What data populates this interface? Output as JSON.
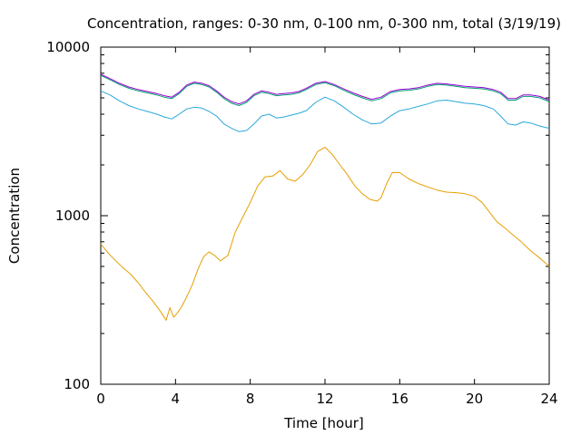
{
  "chart_data": {
    "type": "line",
    "title": "Concentration, ranges: 0-30 nm, 0-100 nm, 0-300 nm, total (3/19/19)",
    "xlabel": "Time [hour]",
    "ylabel": "Concentration",
    "xlim": [
      0,
      24
    ],
    "ylim": [
      100,
      10000
    ],
    "yscale": "log",
    "grid": false,
    "legend": "none",
    "x_ticks": [
      0,
      4,
      8,
      12,
      16,
      20,
      24
    ],
    "y_ticks": [
      100,
      1000,
      10000
    ],
    "series": [
      {
        "color": "#e69f00",
        "segments": [
          [
            [
              0,
              680
            ],
            [
              0.4,
              600
            ],
            [
              0.8,
              540
            ],
            [
              1.2,
              490
            ],
            [
              1.6,
              450
            ],
            [
              2.0,
              400
            ],
            [
              2.4,
              350
            ],
            [
              2.8,
              310
            ],
            [
              3.2,
              270
            ],
            [
              3.5,
              240
            ],
            [
              3.7,
              285
            ],
            [
              3.9,
              250
            ],
            [
              4.1,
              265
            ],
            [
              4.3,
              285
            ],
            [
              4.6,
              330
            ],
            [
              4.9,
              390
            ],
            [
              5.2,
              480
            ],
            [
              5.5,
              570
            ],
            [
              5.8,
              610
            ],
            [
              6.1,
              580
            ],
            [
              6.4,
              540
            ],
            [
              6.8,
              580
            ],
            [
              7.2,
              800
            ],
            [
              7.6,
              980
            ],
            [
              8.0,
              1200
            ],
            [
              8.4,
              1500
            ],
            [
              8.8,
              1700
            ],
            [
              9.2,
              1720
            ],
            [
              9.6,
              1850
            ],
            [
              10.0,
              1650
            ],
            [
              10.4,
              1600
            ],
            [
              10.8,
              1750
            ],
            [
              11.2,
              2000
            ],
            [
              11.6,
              2400
            ],
            [
              12.0,
              2550
            ],
            [
              12.4,
              2300
            ],
            [
              12.8,
              2000
            ],
            [
              13.2,
              1750
            ],
            [
              13.6,
              1500
            ],
            [
              14.0,
              1350
            ],
            [
              14.4,
              1250
            ],
            [
              14.8,
              1220
            ],
            [
              15.0,
              1280
            ],
            [
              15.3,
              1550
            ],
            [
              15.6,
              1800
            ],
            [
              16.0,
              1800
            ],
            [
              16.5,
              1650
            ],
            [
              17.0,
              1550
            ],
            [
              17.5,
              1480
            ],
            [
              18.0,
              1420
            ],
            [
              18.5,
              1380
            ],
            [
              19.0,
              1370
            ],
            [
              19.5,
              1350
            ],
            [
              20.0,
              1300
            ],
            [
              20.4,
              1200
            ],
            [
              20.8,
              1050
            ],
            [
              21.2,
              920
            ],
            [
              21.6,
              850
            ],
            [
              22.0,
              780
            ],
            [
              22.5,
              700
            ],
            [
              23.0,
              620
            ],
            [
              23.5,
              560
            ],
            [
              24.0,
              500
            ]
          ]
        ]
      },
      {
        "color": "#2aa8d8",
        "segments": [
          [
            [
              0,
              5500
            ],
            [
              0.5,
              5200
            ],
            [
              1.0,
              4800
            ],
            [
              1.5,
              4500
            ],
            [
              2.0,
              4300
            ],
            [
              2.5,
              4150
            ],
            [
              3.0,
              4000
            ],
            [
              3.4,
              3850
            ],
            [
              3.8,
              3750
            ],
            [
              4.2,
              4000
            ],
            [
              4.6,
              4300
            ],
            [
              5.0,
              4400
            ],
            [
              5.4,
              4350
            ],
            [
              5.8,
              4150
            ],
            [
              6.2,
              3900
            ],
            [
              6.6,
              3500
            ],
            [
              7.0,
              3300
            ],
            [
              7.4,
              3150
            ],
            [
              7.8,
              3200
            ],
            [
              8.2,
              3500
            ],
            [
              8.6,
              3900
            ],
            [
              9.0,
              4000
            ],
            [
              9.4,
              3800
            ],
            [
              9.8,
              3850
            ],
            [
              10.2,
              3950
            ],
            [
              10.6,
              4050
            ],
            [
              11.0,
              4200
            ],
            [
              11.5,
              4700
            ],
            [
              12.0,
              5050
            ],
            [
              12.5,
              4800
            ],
            [
              13.0,
              4400
            ],
            [
              13.5,
              4000
            ],
            [
              14.0,
              3700
            ],
            [
              14.5,
              3500
            ],
            [
              15.0,
              3550
            ],
            [
              15.5,
              3900
            ],
            [
              16.0,
              4200
            ],
            [
              16.5,
              4300
            ],
            [
              17.0,
              4450
            ],
            [
              17.5,
              4600
            ],
            [
              18.0,
              4800
            ],
            [
              18.5,
              4850
            ],
            [
              19.0,
              4750
            ],
            [
              19.5,
              4650
            ],
            [
              20.0,
              4600
            ],
            [
              20.5,
              4500
            ],
            [
              21.0,
              4300
            ],
            [
              21.4,
              3900
            ],
            [
              21.8,
              3500
            ],
            [
              22.2,
              3450
            ],
            [
              22.6,
              3600
            ],
            [
              23.0,
              3550
            ],
            [
              23.5,
              3400
            ],
            [
              24.0,
              3300
            ]
          ]
        ]
      },
      {
        "color": "#009e73",
        "segments": [
          [
            [
              0,
              6800
            ],
            [
              0.5,
              6400
            ],
            [
              1.0,
              6000
            ],
            [
              1.5,
              5700
            ],
            [
              2.0,
              5500
            ],
            [
              2.5,
              5350
            ],
            [
              3.0,
              5200
            ],
            [
              3.4,
              5050
            ],
            [
              3.8,
              4950
            ],
            [
              4.2,
              5300
            ],
            [
              4.6,
              5850
            ],
            [
              5.0,
              6100
            ],
            [
              5.4,
              6000
            ],
            [
              5.8,
              5800
            ],
            [
              6.2,
              5400
            ],
            [
              6.6,
              4950
            ],
            [
              7.0,
              4650
            ],
            [
              7.4,
              4500
            ],
            [
              7.8,
              4700
            ],
            [
              8.2,
              5150
            ],
            [
              8.6,
              5400
            ],
            [
              9.0,
              5300
            ],
            [
              9.4,
              5150
            ],
            [
              9.8,
              5200
            ],
            [
              10.2,
              5250
            ],
            [
              10.6,
              5350
            ],
            [
              11.0,
              5600
            ],
            [
              11.5,
              6000
            ],
            [
              12.0,
              6150
            ],
            [
              12.5,
              5900
            ],
            [
              13.0,
              5550
            ],
            [
              13.5,
              5250
            ],
            [
              14.0,
              5000
            ],
            [
              14.5,
              4800
            ],
            [
              15.0,
              4950
            ],
            [
              15.5,
              5350
            ],
            [
              16.0,
              5500
            ],
            [
              16.5,
              5550
            ],
            [
              17.0,
              5650
            ],
            [
              17.5,
              5850
            ],
            [
              18.0,
              6000
            ],
            [
              18.5,
              5950
            ],
            [
              19.0,
              5850
            ],
            [
              19.5,
              5750
            ],
            [
              20.0,
              5700
            ],
            [
              20.5,
              5650
            ],
            [
              21.0,
              5500
            ],
            [
              21.4,
              5300
            ],
            [
              21.8,
              4850
            ],
            [
              22.2,
              4850
            ],
            [
              22.6,
              5100
            ],
            [
              23.0,
              5100
            ],
            [
              23.5,
              5000
            ],
            [
              24.0,
              4750
            ]
          ]
        ]
      },
      {
        "color": "#9400d3",
        "segments": [
          [
            [
              0,
              6900
            ],
            [
              0.5,
              6500
            ],
            [
              1.0,
              6100
            ],
            [
              1.5,
              5800
            ],
            [
              2.0,
              5600
            ],
            [
              2.5,
              5450
            ],
            [
              3.0,
              5300
            ],
            [
              3.4,
              5150
            ],
            [
              3.8,
              5050
            ],
            [
              4.2,
              5400
            ],
            [
              4.6,
              5950
            ],
            [
              5.0,
              6200
            ],
            [
              5.4,
              6100
            ],
            [
              5.8,
              5900
            ],
            [
              6.2,
              5500
            ],
            [
              6.6,
              5050
            ],
            [
              7.0,
              4750
            ],
            [
              7.4,
              4600
            ],
            [
              7.8,
              4800
            ],
            [
              8.2,
              5250
            ],
            [
              8.6,
              5500
            ],
            [
              9.0,
              5400
            ],
            [
              9.4,
              5250
            ],
            [
              9.8,
              5300
            ],
            [
              10.2,
              5350
            ],
            [
              10.6,
              5450
            ],
            [
              11.0,
              5700
            ],
            [
              11.5,
              6100
            ],
            [
              12.0,
              6250
            ],
            [
              12.5,
              6000
            ],
            [
              13.0,
              5650
            ],
            [
              13.5,
              5350
            ],
            [
              14.0,
              5100
            ],
            [
              14.5,
              4900
            ],
            [
              15.0,
              5050
            ],
            [
              15.5,
              5450
            ],
            [
              16.0,
              5600
            ],
            [
              16.5,
              5650
            ],
            [
              17.0,
              5750
            ],
            [
              17.5,
              5950
            ],
            [
              18.0,
              6100
            ],
            [
              18.5,
              6050
            ],
            [
              19.0,
              5950
            ],
            [
              19.5,
              5850
            ],
            [
              20.0,
              5800
            ],
            [
              20.5,
              5750
            ],
            [
              21.0,
              5600
            ],
            [
              21.4,
              5400
            ],
            [
              21.8,
              4950
            ],
            [
              22.2,
              4950
            ],
            [
              22.6,
              5200
            ],
            [
              23.0,
              5200
            ],
            [
              23.5,
              5100
            ],
            [
              24.0,
              4850
            ]
          ]
        ]
      }
    ]
  }
}
